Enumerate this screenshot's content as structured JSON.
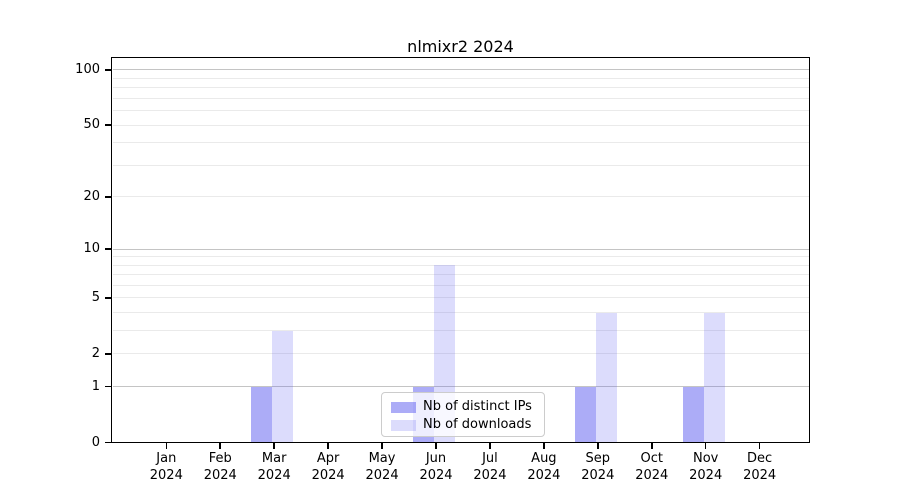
{
  "title": "nlmixr2 2024",
  "legend": {
    "items": [
      {
        "label": "Nb of distinct IPs",
        "color_rgba": "rgba(90,90,240,0.50)",
        "color_hex": "#acacf8"
      },
      {
        "label": "Nb of downloads",
        "color_rgba": "rgba(90,90,240,0.21)",
        "color_hex": "#dcdcfb"
      }
    ]
  },
  "chart_data": {
    "type": "bar",
    "title": "nlmixr2 2024",
    "x": [
      "Jan",
      "Feb",
      "Mar",
      "Apr",
      "May",
      "Jun",
      "Jul",
      "Aug",
      "Sep",
      "Oct",
      "Nov",
      "Dec"
    ],
    "x_year": "2024",
    "series": [
      {
        "name": "Nb of distinct IPs",
        "color": "#acacf8",
        "values": [
          0,
          0,
          1,
          0,
          0,
          1,
          0,
          0,
          1,
          0,
          1,
          0
        ]
      },
      {
        "name": "Nb of downloads",
        "color": "#dcdcfb",
        "values": [
          0,
          0,
          3,
          0,
          0,
          8,
          0,
          0,
          4,
          0,
          4,
          0
        ]
      }
    ],
    "y_scale": "log1p",
    "y_ticks": [
      0,
      1,
      2,
      5,
      10,
      20,
      50,
      100
    ],
    "y_grid_decades": [
      1,
      10,
      100
    ],
    "y_grid_minor": [
      2,
      3,
      4,
      5,
      6,
      7,
      8,
      9,
      20,
      30,
      40,
      50,
      60,
      70,
      80,
      90
    ],
    "ylim": [
      0,
      116
    ],
    "grid": true,
    "legend_position": "lower center"
  },
  "colors": {
    "bar_ips": "rgba(90,90,240,0.50)",
    "bar_downloads": "rgba(90,90,240,0.21)",
    "grid_decade": "#c4c4c4",
    "grid_minor": "#eaeaea",
    "spine": "#000000",
    "legend_border": "#cccccc",
    "text": "#000000",
    "background": "#ffffff"
  }
}
